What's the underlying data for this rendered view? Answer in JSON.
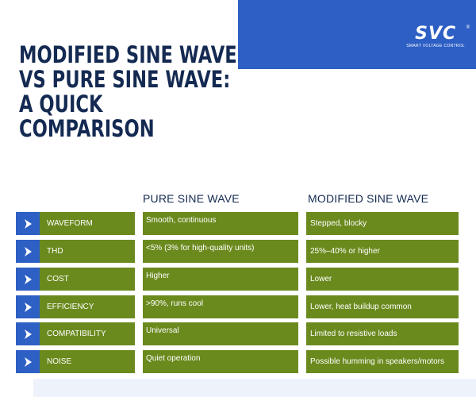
{
  "logo": {
    "mark": "SVC",
    "registered": "®",
    "tagline": "SMART VOLTAGE CONTROL"
  },
  "title": [
    "MODIFIED SINE WAVE",
    "VS PURE SINE WAVE:",
    "A QUICK",
    "COMPARISON"
  ],
  "columns": {
    "pure": "PURE SINE WAVE",
    "modified": "MODIFIED SINE WAVE"
  },
  "rows": [
    {
      "label": "WAVEFORM",
      "pure": "Smooth, continuous",
      "modified": "Stepped, blocky"
    },
    {
      "label": "THD",
      "pure": "<5% (3% for high-quality units)",
      "modified": "25%–40% or higher"
    },
    {
      "label": "COST",
      "pure": "Higher",
      "modified": "Lower"
    },
    {
      "label": "EFFICIENCY",
      "pure": ">90%, runs cool",
      "modified": "Lower, heat buildup common"
    },
    {
      "label": "COMPATIBILITY",
      "pure": "Universal",
      "modified": "Limited to resistive loads"
    },
    {
      "label": "NOISE",
      "pure": "Quiet operation",
      "modified": "Possible humming in speakers/motors"
    }
  ],
  "colors": {
    "blue": "#2d5fc4",
    "green": "#6b8a1e",
    "navy": "#142a52"
  },
  "icons": {
    "row_marker": "chevron-right-icon"
  }
}
